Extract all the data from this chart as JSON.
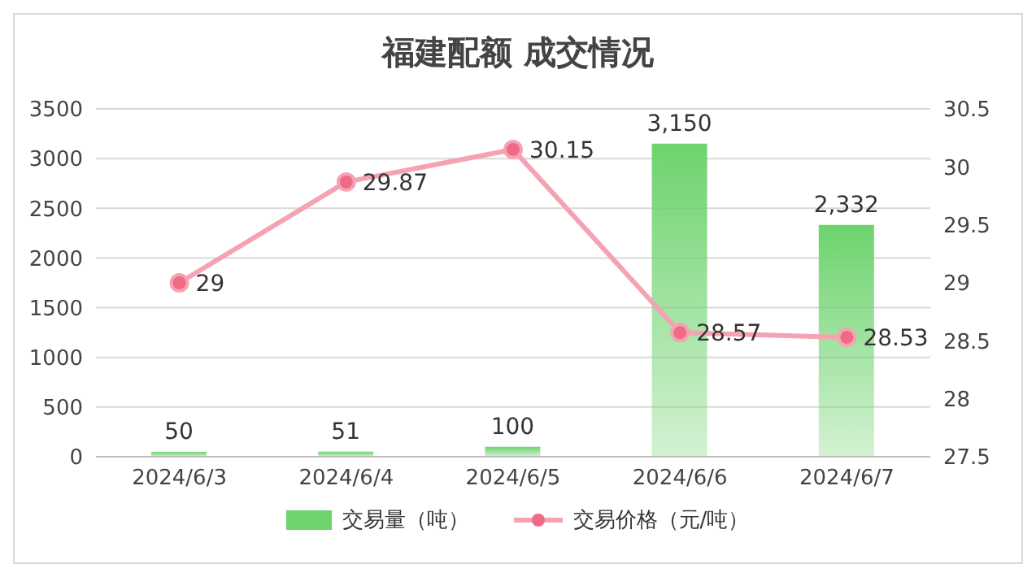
{
  "chart_data": {
    "type": "bar",
    "title": "福建配额 成交情况",
    "categories": [
      "2024/6/3",
      "2024/6/4",
      "2024/6/5",
      "2024/6/6",
      "2024/6/7"
    ],
    "series": [
      {
        "name": "交易量（吨）",
        "color": "#6dd36d",
        "values": [
          50,
          51,
          100,
          3150,
          2332
        ],
        "value_labels": [
          "50",
          "51",
          "100",
          "3,150",
          "2,332"
        ]
      },
      {
        "name": "交易价格（元/吨）",
        "type": "line",
        "axis": "y2",
        "color": "#f5a3b3",
        "values": [
          29,
          29.87,
          30.15,
          28.57,
          28.53
        ],
        "value_labels": [
          "29",
          "29.87",
          "30.15",
          "28.57",
          "28.53"
        ]
      }
    ],
    "ylim": [
      0,
      3500
    ],
    "yticks": [
      0,
      500,
      1000,
      1500,
      2000,
      2500,
      3000,
      3500
    ],
    "y2lim": [
      27.5,
      30.5
    ],
    "y2ticks": [
      27.5,
      28,
      28.5,
      29,
      29.5,
      30,
      30.5
    ],
    "grid": "y",
    "legend": "bottom",
    "marker": "circle"
  }
}
